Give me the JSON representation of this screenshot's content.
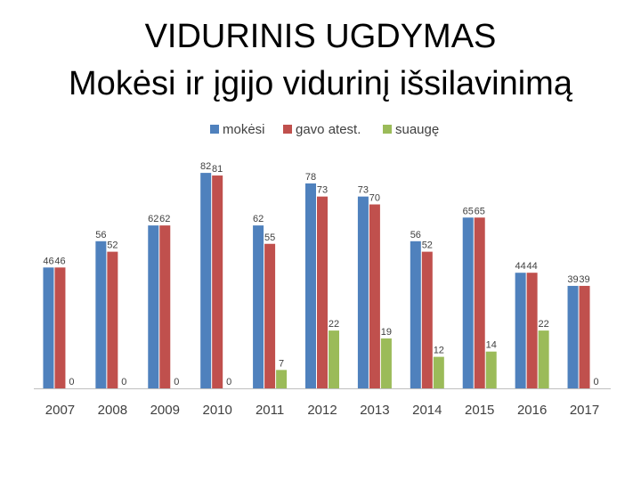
{
  "title": "VIDURINIS UGDYMAS",
  "subtitle": "Mokėsi ir įgijo vidurinį išsilavinimą",
  "chart_data": {
    "type": "bar",
    "categories": [
      "2007",
      "2008",
      "2009",
      "2010",
      "2011",
      "2012",
      "2013",
      "2014",
      "2015",
      "2016",
      "2017"
    ],
    "series": [
      {
        "name": "mokėsi",
        "color": "#4F81BD",
        "values": [
          46,
          56,
          62,
          82,
          62,
          78,
          73,
          56,
          65,
          44,
          39
        ]
      },
      {
        "name": "gavo atest.",
        "color": "#C0504D",
        "values": [
          46,
          52,
          62,
          81,
          55,
          73,
          70,
          52,
          65,
          44,
          39
        ]
      },
      {
        "name": "suaugę",
        "color": "#9BBB59",
        "values": [
          0,
          0,
          0,
          0,
          7,
          22,
          19,
          12,
          14,
          22,
          0
        ]
      }
    ],
    "legend_position": "top-center",
    "data_labels": true,
    "grid": false,
    "ylim": [
      0,
      85
    ]
  }
}
